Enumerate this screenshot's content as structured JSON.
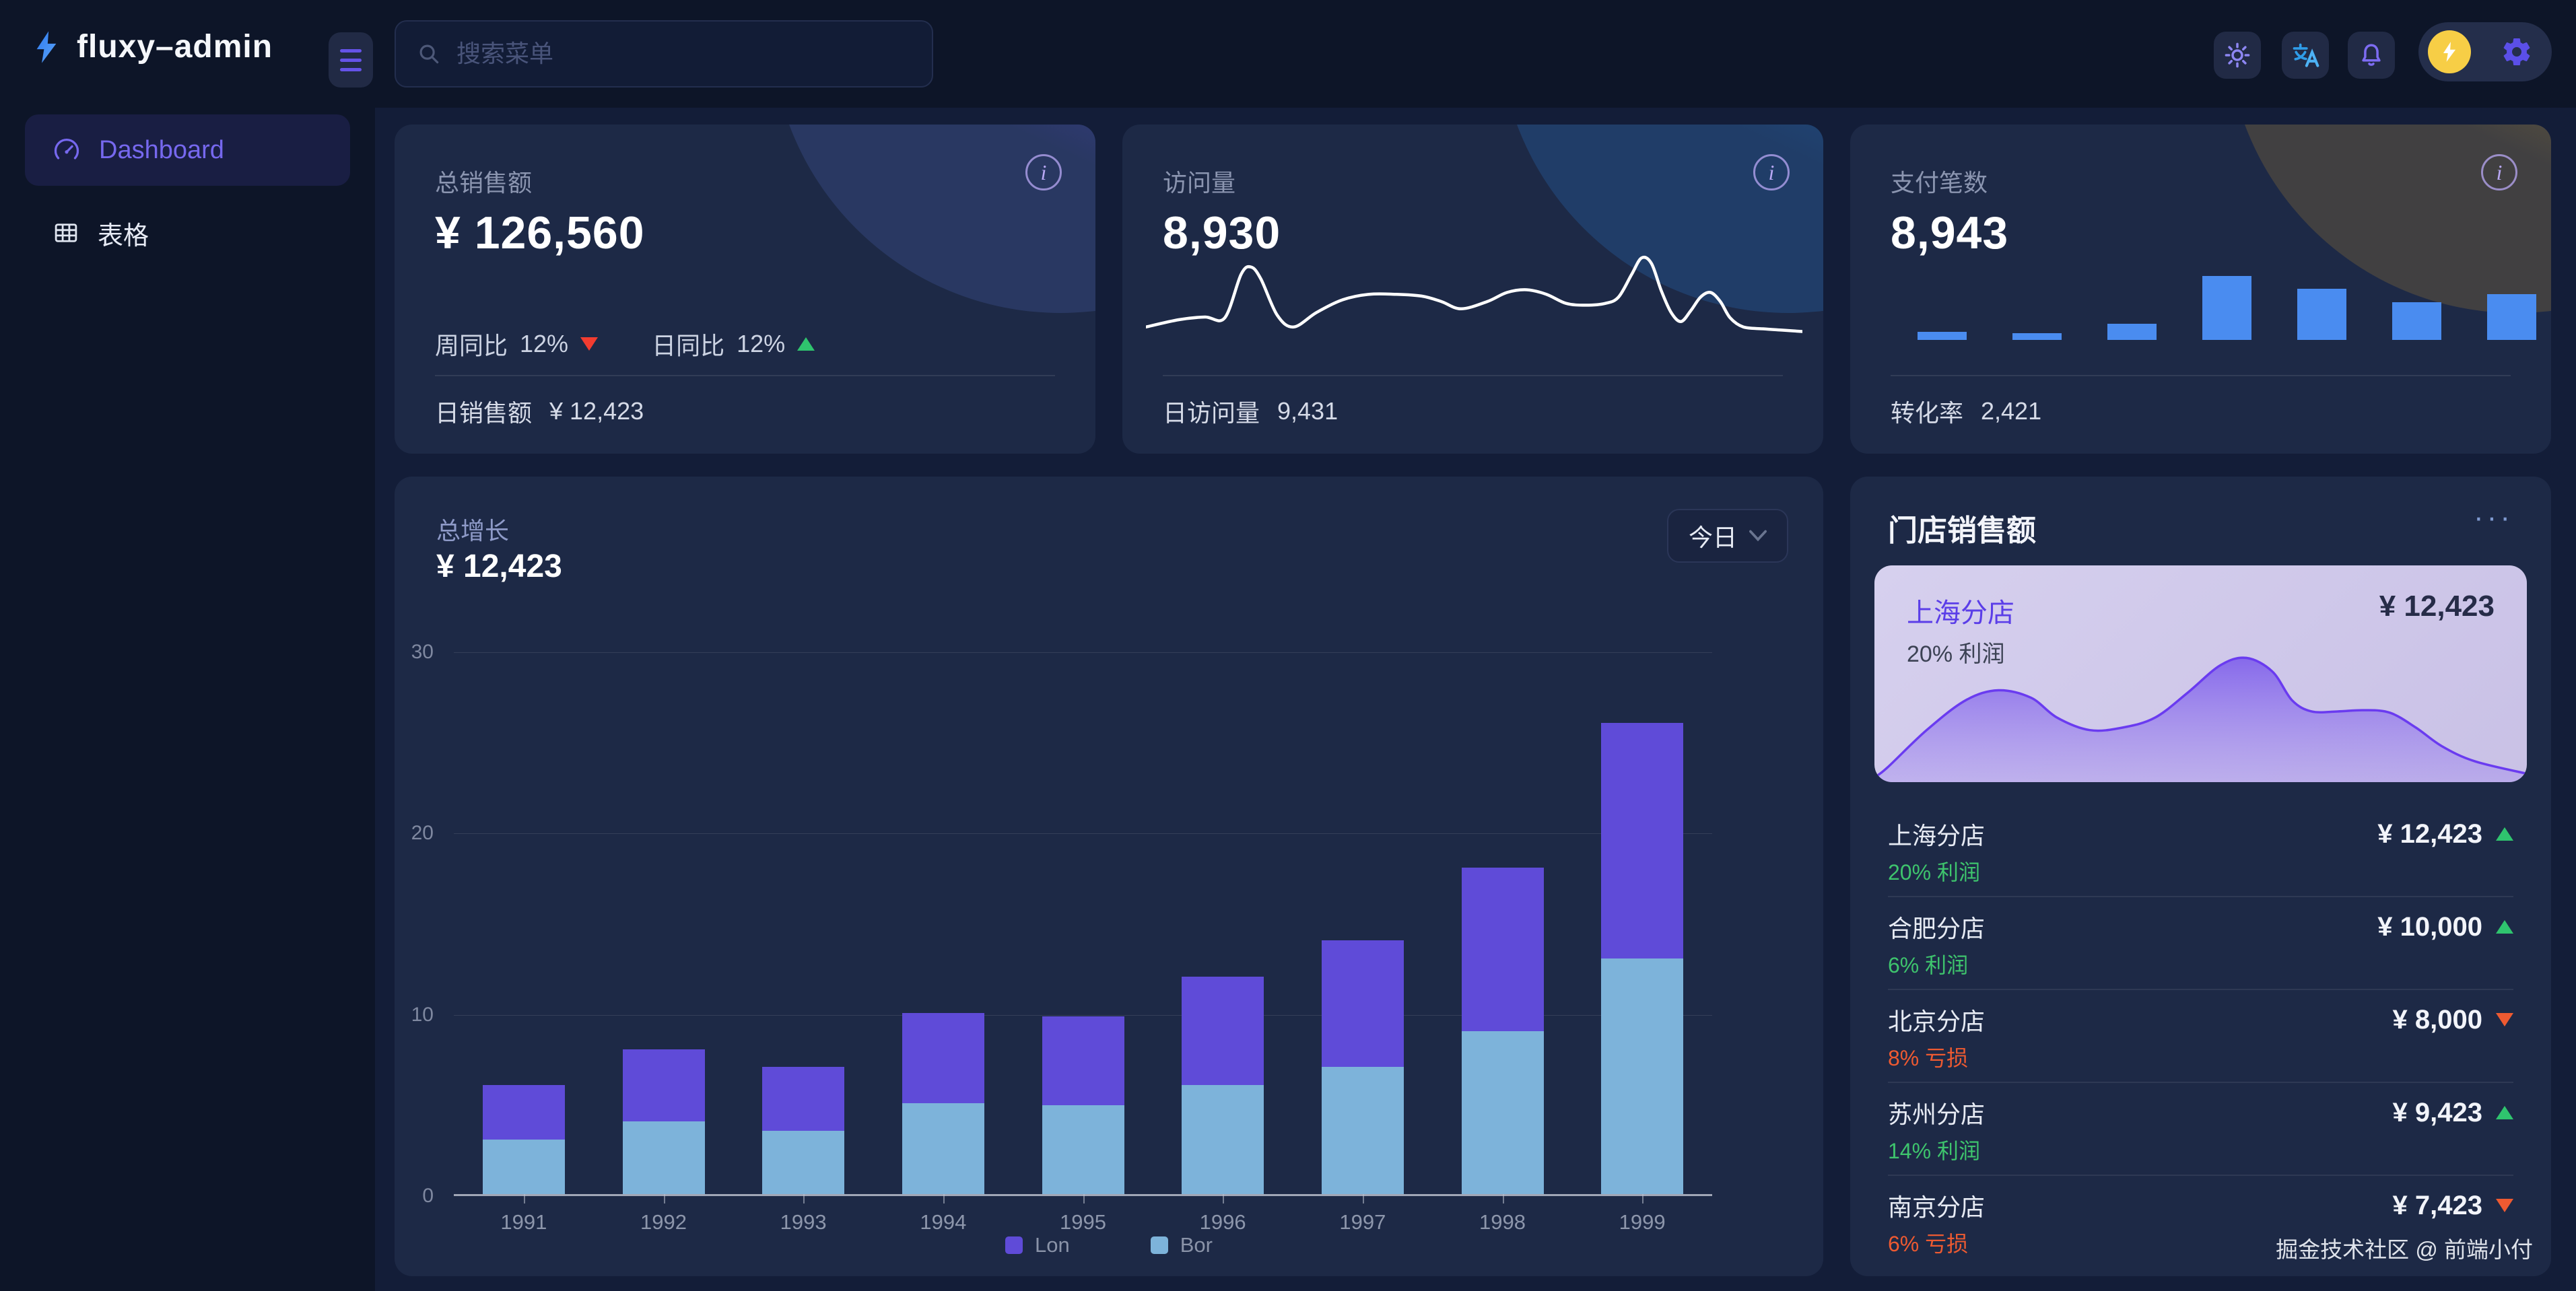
{
  "brand": {
    "name": "fluxy–admin"
  },
  "sidebar": {
    "items": [
      {
        "label": "Dashboard",
        "icon": "gauge-icon",
        "active": true
      },
      {
        "label": "表格",
        "icon": "table-icon",
        "active": false
      }
    ]
  },
  "header": {
    "search_placeholder": "搜索菜单",
    "icons": [
      "sun-icon",
      "translate-icon",
      "bell-icon",
      "avatar-bolt-icon",
      "gear-icon"
    ]
  },
  "stats_cards": [
    {
      "title": "总销售额",
      "value": "¥ 126,560",
      "week_label": "周同比",
      "week_value": "12%",
      "week_trend": "down",
      "day_label": "日同比",
      "day_value": "12%",
      "day_trend": "up",
      "footer_label": "日销售额",
      "footer_value": "¥ 12,423"
    },
    {
      "title": "访问量",
      "value": "8,930",
      "footer_label": "日访问量",
      "footer_value": "9,431",
      "spark_line": [
        [
          0,
          88
        ],
        [
          5,
          80
        ],
        [
          9,
          77
        ],
        [
          12,
          78
        ],
        [
          14.5,
          30
        ],
        [
          16,
          22
        ],
        [
          17.5,
          35
        ],
        [
          20,
          75
        ],
        [
          22.5,
          88
        ],
        [
          26,
          72
        ],
        [
          30,
          58
        ],
        [
          34,
          52
        ],
        [
          38,
          52
        ],
        [
          42,
          54
        ],
        [
          45,
          60
        ],
        [
          48,
          68
        ],
        [
          52,
          60
        ],
        [
          55,
          50
        ],
        [
          58,
          47
        ],
        [
          61,
          52
        ],
        [
          64,
          62
        ],
        [
          67,
          64
        ],
        [
          70,
          62
        ],
        [
          72,
          55
        ],
        [
          74,
          30
        ],
        [
          75.5,
          12
        ],
        [
          77,
          18
        ],
        [
          78.5,
          48
        ],
        [
          80,
          72
        ],
        [
          81.5,
          82
        ],
        [
          83,
          70
        ],
        [
          84.5,
          55
        ],
        [
          86,
          50
        ],
        [
          87.5,
          60
        ],
        [
          89,
          78
        ],
        [
          91,
          88
        ],
        [
          94,
          90
        ],
        [
          97,
          91.5
        ],
        [
          100,
          93
        ]
      ],
      "line_color": "#ffffff"
    },
    {
      "title": "支付笔数",
      "value": "8,943",
      "footer_label": "转化率",
      "footer_value": "2,421",
      "spark_bars": [
        12,
        10,
        24,
        95,
        76,
        56,
        68
      ],
      "bar_color": "#4a8cf0"
    }
  ],
  "growth_chart": {
    "title": "总增长",
    "value": "¥ 12,423",
    "range_label": "今日",
    "chart_data": {
      "type": "bar",
      "stacked": true,
      "categories": [
        "1991",
        "1992",
        "1993",
        "1994",
        "1995",
        "1996",
        "1997",
        "1998",
        "1999"
      ],
      "series": [
        {
          "name": "Lon",
          "color": "#5f4bd8",
          "values": [
            3,
            4,
            3.5,
            5,
            4.9,
            6,
            7,
            9,
            13
          ]
        },
        {
          "name": "Bor",
          "color": "#7db3da",
          "values": [
            3,
            4,
            3.5,
            5,
            4.9,
            6,
            7,
            9,
            13
          ]
        }
      ],
      "ylim": [
        0,
        30
      ],
      "yticks": [
        0,
        10,
        20,
        30
      ],
      "grid": true,
      "legend_position": "bottom"
    }
  },
  "store_panel": {
    "title": "门店销售额",
    "more_label": "···",
    "featured": {
      "name": "上海分店",
      "value": "¥ 12,423",
      "note": "20% 利润",
      "area_points": [
        [
          0,
          100
        ],
        [
          2,
          92
        ],
        [
          8,
          62
        ],
        [
          14,
          38
        ],
        [
          19,
          30
        ],
        [
          24,
          36
        ],
        [
          28,
          52
        ],
        [
          33,
          62
        ],
        [
          38,
          60
        ],
        [
          43,
          52
        ],
        [
          48,
          32
        ],
        [
          53,
          10
        ],
        [
          57,
          4
        ],
        [
          61,
          15
        ],
        [
          64,
          38
        ],
        [
          67,
          47
        ],
        [
          71,
          47
        ],
        [
          75,
          46
        ],
        [
          79,
          48
        ],
        [
          83,
          60
        ],
        [
          87,
          75
        ],
        [
          92,
          87
        ],
        [
          100,
          97
        ]
      ],
      "area_stroke": "#6a3bf0"
    },
    "rows": [
      {
        "name": "上海分店",
        "value": "¥ 12,423",
        "trend": "up",
        "note": "20% 利润",
        "note_type": "profit"
      },
      {
        "name": "合肥分店",
        "value": "¥ 10,000",
        "trend": "up",
        "note": "6% 利润",
        "note_type": "profit"
      },
      {
        "name": "北京分店",
        "value": "¥ 8,000",
        "trend": "down",
        "note": "8% 亏损",
        "note_type": "loss"
      },
      {
        "name": "苏州分店",
        "value": "¥ 9,423",
        "trend": "up",
        "note": "14% 利润",
        "note_type": "profit"
      },
      {
        "name": "南京分店",
        "value": "¥ 7,423",
        "trend": "down",
        "note": "6% 亏损",
        "note_type": "loss"
      }
    ]
  },
  "watermark": "掘金技术社区 @ 前端小付",
  "colors": {
    "accent": "#6553e8",
    "green": "#2fc46e",
    "red": "#f23c30",
    "loss_orange": "#ee5a31",
    "card_bg": "#1d2946",
    "page_bg": "#0d1528",
    "content_bg": "#131d38"
  }
}
